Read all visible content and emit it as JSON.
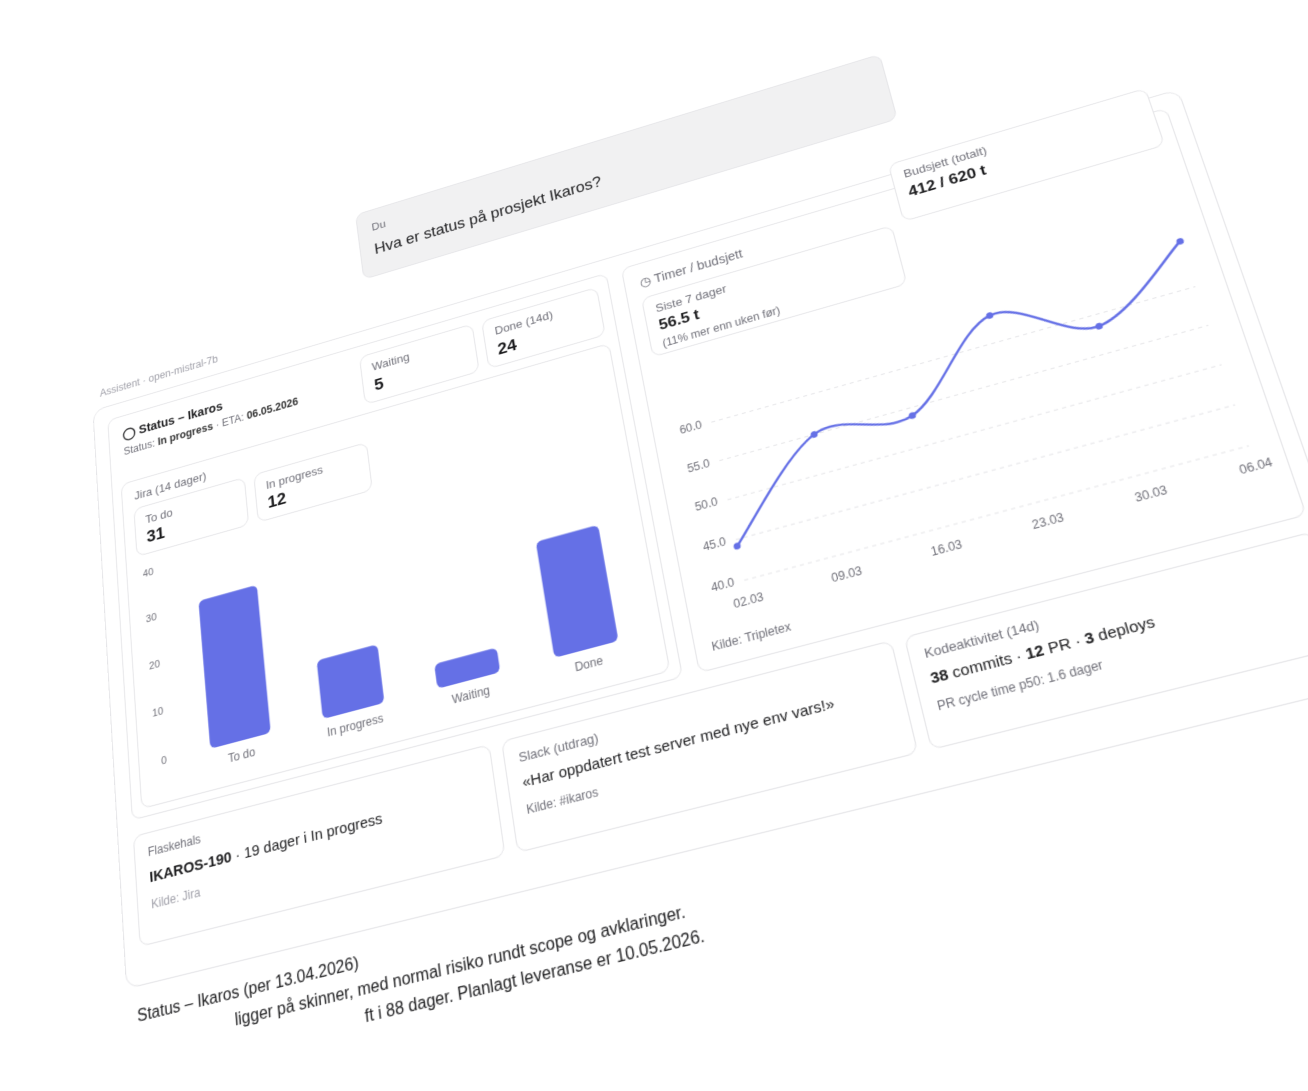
{
  "user": {
    "label": "Du",
    "message": "Hva er status på prosjekt Ikaros?"
  },
  "assistant": {
    "label": "Assistent · open-mistral-7b"
  },
  "status": {
    "title": "Status – Ikaros",
    "status_label": "Status:",
    "status": "In progress",
    "eta_label": "· ETA:",
    "eta": "06.05.2026"
  },
  "stats": [
    {
      "label": "Waiting",
      "value": 5
    },
    {
      "label": "Done (14d)",
      "value": 24
    }
  ],
  "jira": {
    "title": "Jira (14 dager)",
    "stats": [
      {
        "label": "To do",
        "value": 31
      },
      {
        "label": "In progress",
        "value": 12
      }
    ],
    "chart": {
      "type": "bar",
      "categories": [
        "To do",
        "In progress",
        "Waiting",
        "Done"
      ],
      "values": [
        31,
        12,
        5,
        24
      ],
      "color": "#6570e6",
      "ylim": [
        0,
        40
      ],
      "yticks": [
        0,
        10,
        20,
        30,
        40
      ]
    }
  },
  "hours": {
    "title": "Timer / budsjett",
    "last7": {
      "label": "Siste 7 dager",
      "value": "56.5 t",
      "note": "(11% mer enn uken før)"
    },
    "budget": {
      "label": "Budsjett (totalt)",
      "value": "412 / 620 t"
    },
    "chart": {
      "type": "line",
      "categories": [
        "02.03",
        "09.03",
        "16.03",
        "23.03",
        "30.03",
        "06.04"
      ],
      "values": [
        44.2,
        55,
        54,
        63.5,
        58.5,
        66
      ],
      "color": "#6570e6",
      "ylim": [
        40,
        68
      ],
      "yticks": [
        {
          "value": 40,
          "label": "40.0"
        },
        {
          "value": 45,
          "label": "45.0"
        },
        {
          "value": 50,
          "label": "50.0"
        },
        {
          "value": 55,
          "label": "55.0"
        },
        {
          "value": 60,
          "label": "60.0"
        }
      ],
      "grid": true
    },
    "source": "Kilde: Tripletex"
  },
  "bottleneck": {
    "title": "Flaskehals",
    "issue": "IKAROS-190",
    "text": "· 19 dager i In progress",
    "source": "Kilde: Jira"
  },
  "slack": {
    "title": "Slack (utdrag)",
    "quote": "«Har oppdatert test server med nye env vars!»",
    "source": "Kilde: #ikaros"
  },
  "code": {
    "title": "Kodeaktivitet (14d)",
    "commits": 38,
    "commits_label": "commits ·",
    "pr": 12,
    "pr_label": "PR ·",
    "deploys": 3,
    "deploys_label": "deploys",
    "note": "PR cycle time p50: 1.6 dager"
  },
  "summary": {
    "title": "Status – Ikaros (per 13.04.2026)",
    "line1": "ligger på skinner, med normal risiko rundt scope og avklaringer.",
    "line2": "ft i 88 dager. Planlagt leveranse er 10.05.2026."
  }
}
